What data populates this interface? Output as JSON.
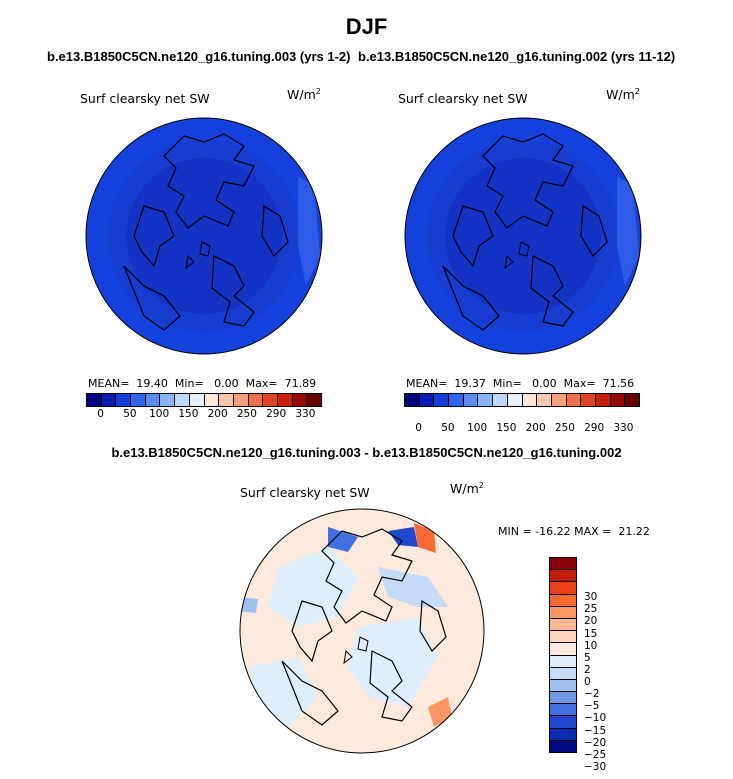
{
  "title": "DJF",
  "panels": [
    {
      "case": "b.e13.B1850C5CN.ne120_g16.tuning.003 (yrs 1-2)",
      "var": "Surf clearsky net SW",
      "units_base": "W/m",
      "units_exp": "2",
      "mean_label": "MEAN=",
      "mean": "19.40",
      "min_label": "Min=",
      "min": "0.00",
      "max_label": "Max=",
      "max": "71.89"
    },
    {
      "case": "b.e13.B1850C5CN.ne120_g16.tuning.002 (yrs 11-12)",
      "var": "Surf clearsky net SW",
      "units_base": "W/m",
      "units_exp": "2",
      "mean_label": "MEAN=",
      "mean": "19.37",
      "min_label": "Min=",
      "min": "0.00",
      "max_label": "Max=",
      "max": "71.56"
    }
  ],
  "abs_colorbar": {
    "colors": [
      "#00007f",
      "#0a1eb4",
      "#1441dc",
      "#3264f0",
      "#5a8cf5",
      "#8cb4fa",
      "#bed7fd",
      "#e6f0ff",
      "#fdeadc",
      "#f8c8aa",
      "#f4a07a",
      "#ee704b",
      "#e0441c",
      "#c81e0a",
      "#9a0a00",
      "#6a0000"
    ],
    "ticks": [
      "0",
      "50",
      "100",
      "150",
      "200",
      "250",
      "290",
      "330"
    ]
  },
  "difference": {
    "subtitle": "b.e13.B1850C5CN.ne120_g16.tuning.003 - b.e13.B1850C5CN.ne120_g16.tuning.002",
    "var": "Surf clearsky net SW",
    "units_base": "W/m",
    "units_exp": "2",
    "minmax": "MIN = -16.22 MAX =  21.22",
    "colors": [
      "#8b0000",
      "#c51b0a",
      "#e8401a",
      "#f96a33",
      "#fb9664",
      "#fdb892",
      "#fed6bd",
      "#fdeadc",
      "#dfeefb",
      "#c4dcf7",
      "#9fc1f1",
      "#6f97e8",
      "#4270e0",
      "#1f48d0",
      "#0a2ab0",
      "#000b80"
    ],
    "ticks": [
      "30",
      "25",
      "20",
      "15",
      "10",
      "5",
      "2",
      "0",
      "−2",
      "−5",
      "−10",
      "−15",
      "−20",
      "−25",
      "−30"
    ]
  }
}
